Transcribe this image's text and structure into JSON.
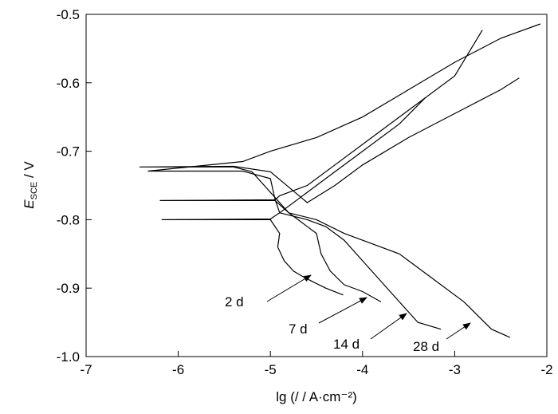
{
  "chart_data": {
    "type": "line",
    "xlabel": "lg (/ / A·cm⁻²)",
    "ylabel": "E",
    "ylabel_sub": "SCE",
    "ylabel_unit": " / V",
    "xlim": [
      -7,
      -2
    ],
    "ylim": [
      -1.0,
      -0.5
    ],
    "xticks": [
      -7,
      -6,
      -5,
      -4,
      -3,
      -2
    ],
    "yticks": [
      -0.5,
      -0.6,
      -0.7,
      -0.8,
      -0.9,
      {
        "value": -1.0,
        "label": "-1.0"
      }
    ],
    "color": "#000000",
    "series": [
      {
        "name": "2 d",
        "x": [
          -4.21,
          -4.4,
          -4.55,
          -4.65,
          -4.75,
          -4.85,
          -4.92,
          -4.9,
          -4.95,
          -5.0,
          -6.18,
          -5.0,
          -4.9,
          -4.7,
          -4.4,
          -4.0,
          -3.6,
          -3.32
        ],
        "values": [
          -0.91,
          -0.9,
          -0.89,
          -0.883,
          -0.875,
          -0.86,
          -0.84,
          -0.82,
          -0.81,
          -0.8,
          -0.8,
          -0.799,
          -0.79,
          -0.77,
          -0.74,
          -0.7,
          -0.66,
          -0.622
        ]
      },
      {
        "name": "7 d",
        "x": [
          -3.8,
          -4.0,
          -4.2,
          -4.35,
          -4.45,
          -4.5,
          -4.7,
          -4.8,
          -4.95,
          -6.2,
          -4.95,
          -4.9,
          -4.6,
          -4.3,
          -3.9,
          -3.5,
          -3.0,
          -2.7
        ],
        "values": [
          -0.92,
          -0.905,
          -0.895,
          -0.875,
          -0.85,
          -0.82,
          -0.8,
          -0.79,
          -0.772,
          -0.772,
          -0.771,
          -0.765,
          -0.75,
          -0.72,
          -0.68,
          -0.64,
          -0.59,
          -0.523
        ]
      },
      {
        "name": "14 d",
        "x": [
          -3.15,
          -3.4,
          -3.6,
          -3.8,
          -4.0,
          -4.2,
          -4.4,
          -4.6,
          -4.9,
          -4.95,
          -5.0,
          -5.3,
          -6.33,
          -5.3,
          -5.0,
          -4.5,
          -4.0,
          -3.5,
          -3.0,
          -2.5,
          -2.07
        ],
        "values": [
          -0.96,
          -0.95,
          -0.92,
          -0.89,
          -0.86,
          -0.83,
          -0.81,
          -0.8,
          -0.79,
          -0.77,
          -0.74,
          -0.729,
          -0.729,
          -0.715,
          -0.7,
          -0.68,
          -0.65,
          -0.61,
          -0.57,
          -0.535,
          -0.514
        ]
      },
      {
        "name": "28 d",
        "x": [
          -2.4,
          -2.6,
          -2.9,
          -3.2,
          -3.6,
          -3.9,
          -4.2,
          -4.5,
          -4.8,
          -5.0,
          -5.2,
          -5.4,
          -6.42,
          -5.4,
          -5.0,
          -4.6,
          -4.3,
          -4.0,
          -3.5,
          -3.0,
          -2.5,
          -2.3
        ],
        "values": [
          -0.972,
          -0.96,
          -0.92,
          -0.89,
          -0.85,
          -0.835,
          -0.82,
          -0.8,
          -0.79,
          -0.76,
          -0.73,
          -0.723,
          -0.723,
          -0.722,
          -0.73,
          -0.775,
          -0.75,
          -0.72,
          -0.68,
          -0.645,
          -0.61,
          -0.593
        ]
      }
    ]
  }
}
